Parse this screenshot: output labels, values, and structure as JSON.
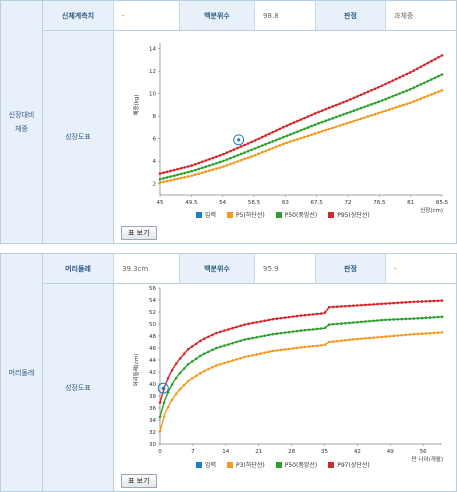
{
  "colors": {
    "input": "#1a7fc1",
    "p_low": "#f39a1e",
    "p50": "#2ca02c",
    "p_high": "#d62728",
    "grid": "#e0e0e0"
  },
  "weight_section": {
    "side_label_line1": "신장대비",
    "side_label_line2": "체중",
    "measure_header": "신체계측치",
    "measure_value": "-",
    "percentile_header": "백분위수",
    "percentile_value": "98.8",
    "judgement_header": "판정",
    "judgement_value": "과체중",
    "chart_label": "성장도표",
    "table_button": "표 보기",
    "legend": [
      "입력",
      "P5(하단선)",
      "P50(중앙선)",
      "P95(상단선)"
    ]
  },
  "head_section": {
    "side_label": "머리둘레",
    "measure_header": "머리둘레",
    "measure_value": "39.3cm",
    "percentile_header": "백분위수",
    "percentile_value": "95.9",
    "judgement_header": "판정",
    "judgement_value": "-",
    "chart_label": "성장도표",
    "table_button": "표 보기",
    "legend": [
      "입력",
      "P3(하단선)",
      "P50(중앙선)",
      "P97(상단선)"
    ]
  },
  "chart_data": [
    {
      "type": "line",
      "ylabel": "체중(kg)",
      "xlabel": "신장(cm)",
      "x_tick_labels": [
        "45",
        "49.5",
        "54",
        "58.5",
        "63",
        "67.5",
        "72",
        "76.5",
        "81",
        "85.5"
      ],
      "y_tick_labels": [
        "2",
        "4",
        "6",
        "8",
        "10",
        "12",
        "14"
      ],
      "xlim": [
        45,
        85.5
      ],
      "ylim": [
        1,
        14.5
      ],
      "series": [
        {
          "name": "P5(하단선)",
          "x": [
            45,
            49.5,
            54,
            58.5,
            63,
            67.5,
            72,
            76.5,
            81,
            85.5
          ],
          "y": [
            2.1,
            2.7,
            3.5,
            4.5,
            5.6,
            6.5,
            7.4,
            8.3,
            9.2,
            10.3
          ]
        },
        {
          "name": "P50(중앙선)",
          "x": [
            45,
            49.5,
            54,
            58.5,
            63,
            67.5,
            72,
            76.5,
            81,
            85.5
          ],
          "y": [
            2.4,
            3.1,
            4.0,
            5.1,
            6.2,
            7.3,
            8.3,
            9.3,
            10.4,
            11.7
          ]
        },
        {
          "name": "P95(상단선)",
          "x": [
            45,
            49.5,
            54,
            58.5,
            63,
            67.5,
            72,
            76.5,
            81,
            85.5
          ],
          "y": [
            2.9,
            3.6,
            4.6,
            5.8,
            7.1,
            8.3,
            9.4,
            10.6,
            11.9,
            13.4
          ]
        }
      ],
      "input_point": {
        "x": 56.3,
        "y": 5.9
      }
    },
    {
      "type": "line",
      "ylabel": "머리둘레(cm)",
      "xlabel": "만 나이(개월)",
      "x_tick_labels": [
        "0",
        "7",
        "14",
        "21",
        "28",
        "35",
        "42",
        "49",
        "56"
      ],
      "y_tick_labels": [
        "30",
        "32",
        "34",
        "36",
        "38",
        "40",
        "42",
        "44",
        "46",
        "48",
        "50",
        "52",
        "54",
        "56"
      ],
      "xlim": [
        0,
        60
      ],
      "ylim": [
        30,
        56
      ],
      "series": [
        {
          "name": "P3(하단선)",
          "x": [
            0,
            1,
            2,
            3,
            4,
            6,
            9,
            12,
            18,
            24,
            30,
            35,
            36,
            42,
            48,
            54,
            60
          ],
          "y": [
            32.1,
            35.0,
            36.6,
            37.9,
            38.9,
            40.5,
            42.0,
            43.1,
            44.5,
            45.5,
            46.1,
            46.5,
            47.0,
            47.5,
            47.9,
            48.3,
            48.6
          ]
        },
        {
          "name": "P50(중앙선)",
          "x": [
            0,
            1,
            2,
            3,
            4,
            6,
            9,
            12,
            18,
            24,
            30,
            35,
            36,
            42,
            48,
            54,
            60
          ],
          "y": [
            34.5,
            37.3,
            39.1,
            40.5,
            41.6,
            43.3,
            44.9,
            46.0,
            47.4,
            48.3,
            48.9,
            49.3,
            49.9,
            50.3,
            50.7,
            50.9,
            51.2
          ]
        },
        {
          "name": "P97(상단선)",
          "x": [
            0,
            1,
            2,
            3,
            4,
            6,
            9,
            12,
            18,
            24,
            30,
            35,
            36,
            42,
            48,
            54,
            60
          ],
          "y": [
            36.9,
            39.6,
            41.5,
            42.9,
            44.0,
            45.8,
            47.4,
            48.5,
            49.9,
            50.8,
            51.4,
            51.8,
            52.8,
            53.1,
            53.4,
            53.7,
            53.9
          ]
        }
      ],
      "input_point": {
        "x": 0.7,
        "y": 39.3
      }
    }
  ]
}
